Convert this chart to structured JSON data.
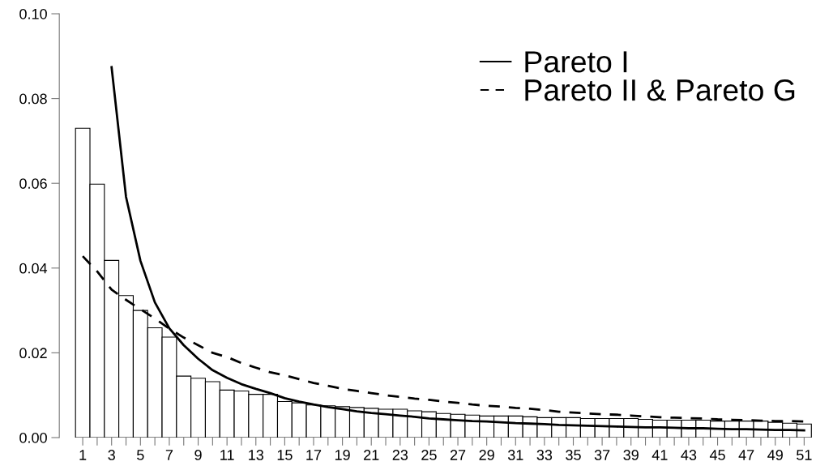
{
  "chart_data": {
    "type": "bar",
    "categories": [
      "1",
      null,
      "3",
      null,
      "5",
      null,
      "7",
      null,
      "9",
      null,
      "11",
      null,
      "13",
      null,
      "15",
      null,
      "17",
      null,
      "19",
      null,
      "21",
      null,
      "23",
      null,
      "25",
      null,
      "27",
      null,
      "29",
      null,
      "31",
      null,
      "33",
      null,
      "35",
      null,
      "37",
      null,
      "39",
      null,
      "41",
      null,
      "43",
      null,
      "45",
      null,
      "47",
      null,
      "49",
      null,
      "51"
    ],
    "series": [
      {
        "color": "#ffffff",
        "values": [
          0.073,
          0.0598,
          0.0418,
          0.0335,
          0.03,
          0.0259,
          0.0237,
          0.0145,
          0.014,
          0.0132,
          0.0112,
          0.011,
          0.0102,
          0.0102,
          0.0085,
          0.0082,
          0.0077,
          0.0075,
          0.0073,
          0.0071,
          0.0069,
          0.0067,
          0.0067,
          0.0063,
          0.0061,
          0.0057,
          0.0055,
          0.0053,
          0.0051,
          0.0051,
          0.0051,
          0.0049,
          0.0047,
          0.0047,
          0.0047,
          0.0045,
          0.0045,
          0.0045,
          0.0045,
          0.0043,
          0.0041,
          0.0041,
          0.0041,
          0.0041,
          0.0039,
          0.0039,
          0.0039,
          0.0039,
          0.0036,
          0.0034,
          0.0032
        ]
      },
      {
        "type": "line",
        "name": "Pareto I",
        "color": "#000000",
        "line_style": "solid",
        "values": [
          null,
          null,
          0.0874,
          0.0568,
          0.0417,
          0.0319,
          0.0258,
          0.0218,
          0.0186,
          0.0159,
          0.0141,
          0.0126,
          0.0115,
          0.0105,
          0.0093,
          0.0085,
          0.0078,
          0.0072,
          0.0067,
          0.0062,
          0.0058,
          0.0055,
          0.0052,
          0.0049,
          0.0045,
          0.0043,
          0.0041,
          0.0039,
          0.0038,
          0.0036,
          0.0034,
          0.0033,
          0.0032,
          0.003,
          0.0029,
          0.0028,
          0.0027,
          0.0026,
          0.0025,
          0.0024,
          0.0024,
          0.0023,
          0.0022,
          0.0022,
          0.0021,
          0.002,
          0.002,
          0.0019,
          0.0018,
          0.0018,
          0.0017
        ]
      },
      {
        "type": "line",
        "name": "Pareto II & Pareto G",
        "color": "#000000",
        "line_style": "dashed",
        "values": [
          0.0428,
          0.0392,
          0.0349,
          0.0325,
          0.0303,
          0.0281,
          0.0257,
          0.0236,
          0.0218,
          0.02,
          0.019,
          0.0176,
          0.0165,
          0.0154,
          0.0147,
          0.0138,
          0.0129,
          0.0122,
          0.0115,
          0.011,
          0.0105,
          0.01,
          0.0096,
          0.0092,
          0.0089,
          0.0085,
          0.0082,
          0.0078,
          0.0075,
          0.0073,
          0.007,
          0.0068,
          0.0065,
          0.0061,
          0.0059,
          0.0057,
          0.0055,
          0.0054,
          0.0052,
          0.005,
          0.0048,
          0.0047,
          0.0046,
          0.0045,
          0.0043,
          0.0042,
          0.0041,
          0.004,
          0.0039,
          0.0039,
          0.0038
        ]
      }
    ],
    "ylim": [
      0,
      0.1
    ],
    "yticks": [
      {
        "value": 0,
        "label": "0.00"
      },
      {
        "value": 0.02,
        "label": "0.02"
      },
      {
        "value": 0.04,
        "label": "0.04"
      },
      {
        "value": 0.06,
        "label": "0.06"
      },
      {
        "value": 0.08,
        "label": "0.08"
      },
      {
        "value": 0.1,
        "label": "0.10"
      }
    ],
    "grid": false,
    "legend": "top right"
  }
}
